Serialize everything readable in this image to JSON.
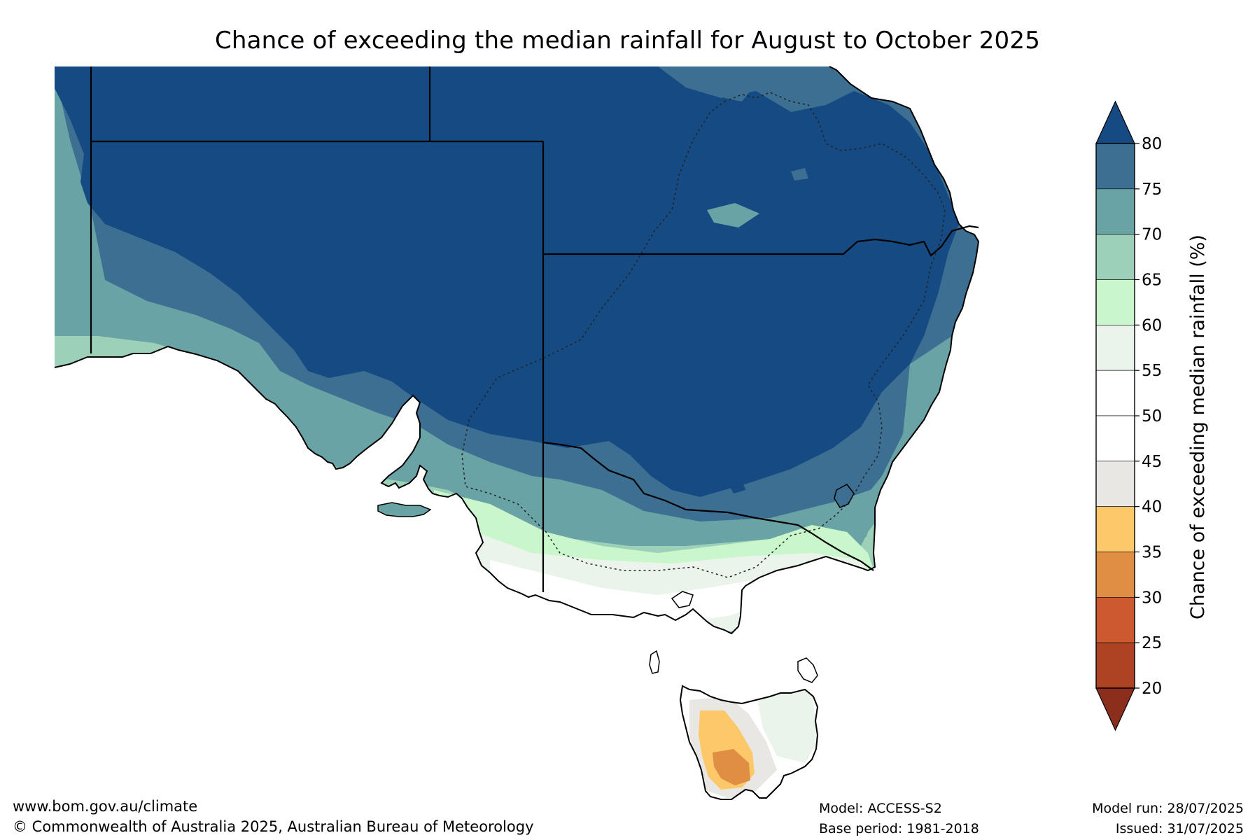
{
  "title": "Chance of exceeding the median rainfall for August to October 2025",
  "footer": {
    "website": "www.bom.gov.au/climate",
    "copyright": "© Commonwealth of Australia 2025, Australian Bureau of Meteorology",
    "model": "Model: ACCESS-S2",
    "base_period": "Base period: 1981-2018",
    "model_run": "Model run: 28/07/2025",
    "issued": "Issued: 31/07/2025"
  },
  "colorbar": {
    "label": "Chance of exceeding median rainfall (%)",
    "ticks": [
      "80",
      "75",
      "70",
      "65",
      "60",
      "55",
      "50",
      "45",
      "40",
      "35",
      "30",
      "25",
      "20"
    ],
    "bins": [
      {
        "range": "above 80",
        "color": "#154b82"
      },
      {
        "range": "75-80",
        "color": "#3c6f91"
      },
      {
        "range": "70-75",
        "color": "#6aa3a5"
      },
      {
        "range": "65-70",
        "color": "#9dd0b9"
      },
      {
        "range": "60-65",
        "color": "#c9f7cb"
      },
      {
        "range": "55-60",
        "color": "#eaf4ea"
      },
      {
        "range": "50-55",
        "color": "#ffffff"
      },
      {
        "range": "45-50",
        "color": "#ffffff"
      },
      {
        "range": "40-45",
        "color": "#e9e7e3"
      },
      {
        "range": "35-40",
        "color": "#fdc869"
      },
      {
        "range": "30-35",
        "color": "#e18e45"
      },
      {
        "range": "25-30",
        "color": "#cc5a2e"
      },
      {
        "range": "20-25",
        "color": "#ad4323"
      },
      {
        "range": "below 20",
        "color": "#8c2e1c"
      }
    ]
  },
  "map": {
    "region": "South-eastern Australia",
    "ocean_color": "#ffffff",
    "boundary_color": "#000000"
  }
}
